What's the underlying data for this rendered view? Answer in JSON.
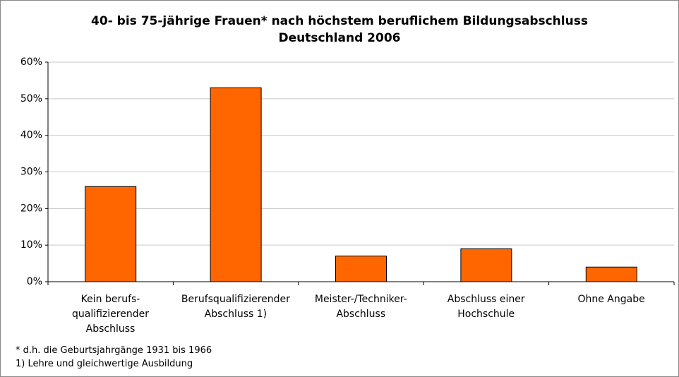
{
  "chart_data": {
    "type": "bar",
    "title": "40- bis 75-jährige Frauen* nach höchstem beruflichem Bildungsabschluss\nDeutschland 2006",
    "categories": [
      "Kein berufs-\nqualifizierender\nAbschluss",
      "Berufsqualifizierender\nAbschluss 1)",
      "Meister-/Techniker-\nAbschluss",
      "Abschluss einer\nHochschule",
      "Ohne Angabe"
    ],
    "values": [
      26,
      53,
      7,
      9,
      4
    ],
    "color": "#ff6600",
    "ylim": [
      0,
      60
    ],
    "yticks": [
      {
        "value": 0,
        "label": "0%"
      },
      {
        "value": 10,
        "label": "10%"
      },
      {
        "value": 20,
        "label": "20%"
      },
      {
        "value": 30,
        "label": "30%"
      },
      {
        "value": 40,
        "label": "40%"
      },
      {
        "value": 50,
        "label": "50%"
      },
      {
        "value": 60,
        "label": "60%"
      }
    ],
    "grid": true,
    "footnotes": [
      "* d.h. die Geburtsjahrgänge 1931 bis 1966",
      "1) Lehre und gleichwertige Ausbildung"
    ]
  }
}
